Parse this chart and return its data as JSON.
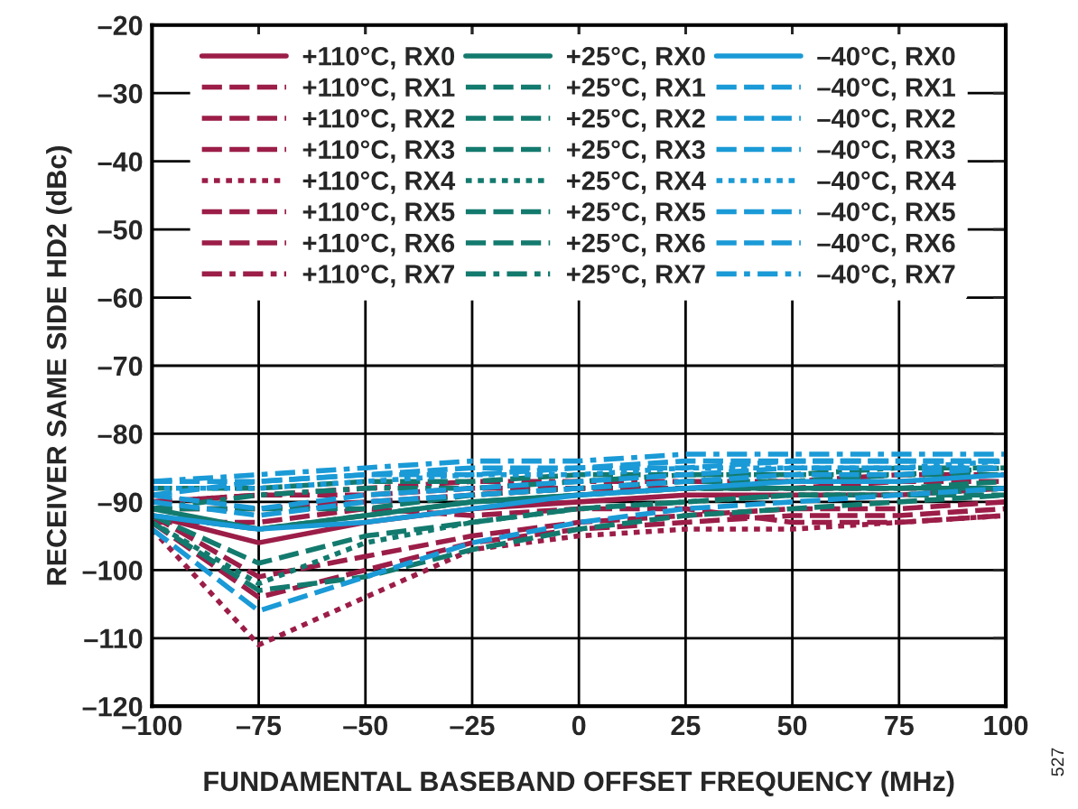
{
  "chart_data": {
    "type": "line",
    "xlabel": "FUNDAMENTAL BASEBAND OFFSET FREQUENCY (MHz)",
    "ylabel": "RECEIVER SAME SIDE HD2 (dBc)",
    "x": [
      -100,
      -75,
      -50,
      -25,
      0,
      25,
      50,
      75,
      100
    ],
    "xlim": [
      -100,
      100
    ],
    "xticks": [
      {
        "value": -100,
        "label": "–100"
      },
      {
        "value": -75,
        "label": "–75"
      },
      {
        "value": -50,
        "label": "–50"
      },
      {
        "value": -25,
        "label": "–25"
      },
      0,
      25,
      50,
      75,
      100
    ],
    "ylim": [
      -120,
      -20
    ],
    "yticks": [
      {
        "value": -120,
        "label": "–120"
      },
      {
        "value": -110,
        "label": "–110"
      },
      {
        "value": -100,
        "label": "–100"
      },
      {
        "value": -90,
        "label": "–90"
      },
      {
        "value": -80,
        "label": "–80"
      },
      {
        "value": -70,
        "label": "–70"
      },
      {
        "value": -60,
        "label": "–60"
      },
      {
        "value": -50,
        "label": "–50"
      },
      {
        "value": -40,
        "label": "–40"
      },
      {
        "value": -30,
        "label": "–30"
      },
      {
        "value": -20,
        "label": "–20"
      }
    ],
    "grid": true,
    "legend": "top",
    "marker": "none",
    "annotations": [
      "527"
    ],
    "series": [
      {
        "name": "+110°C, RX0",
        "color": "#9b1d48",
        "line_style": "solid",
        "values": [
          -92,
          -96,
          -93,
          -91,
          -90,
          -89,
          -89,
          -89,
          -88
        ]
      },
      {
        "name": "+110°C, RX1",
        "color": "#9b1d48",
        "line_style": "dashed",
        "values": [
          -93,
          -104,
          -100,
          -96,
          -94,
          -93,
          -92,
          -92,
          -91
        ]
      },
      {
        "name": "+110°C, RX2",
        "color": "#9b1d48",
        "line_style": "dashed",
        "values": [
          -92,
          -101,
          -98,
          -95,
          -93,
          -92,
          -91,
          -91,
          -90
        ]
      },
      {
        "name": "+110°C, RX3",
        "color": "#9b1d48",
        "line_style": "dashed",
        "values": [
          -91,
          -91,
          -90,
          -89,
          -88,
          -88,
          -88,
          -87,
          -87
        ]
      },
      {
        "name": "+110°C, RX4",
        "color": "#9b1d48",
        "line_style": "dotted",
        "values": [
          -94,
          -111,
          -104,
          -97,
          -95,
          -94,
          -94,
          -93,
          -92
        ]
      },
      {
        "name": "+110°C, RX5",
        "color": "#9b1d48",
        "line_style": "dashed",
        "values": [
          -93,
          -93,
          -91,
          -92,
          -91,
          -91,
          -93,
          -93,
          -92
        ]
      },
      {
        "name": "+110°C, RX6",
        "color": "#9b1d48",
        "line_style": "dashed",
        "values": [
          -90,
          -89,
          -89,
          -88,
          -88,
          -88,
          -88,
          -88,
          -88
        ]
      },
      {
        "name": "+110°C, RX7",
        "color": "#9b1d48",
        "line_style": "dashdot",
        "values": [
          -90,
          -89,
          -88,
          -87,
          -87,
          -87,
          -87,
          -86,
          -86
        ]
      },
      {
        "name": "+25°C, RX0",
        "color": "#137a6e",
        "line_style": "solid",
        "values": [
          -91,
          -94,
          -92,
          -90,
          -89,
          -88,
          -88,
          -88,
          -88
        ]
      },
      {
        "name": "+25°C, RX1",
        "color": "#137a6e",
        "line_style": "dashed",
        "values": [
          -93,
          -103,
          -101,
          -97,
          -94,
          -92,
          -91,
          -90,
          -89
        ]
      },
      {
        "name": "+25°C, RX2",
        "color": "#137a6e",
        "line_style": "dashed",
        "values": [
          -92,
          -99,
          -95,
          -93,
          -91,
          -90,
          -89,
          -89,
          -89
        ]
      },
      {
        "name": "+25°C, RX3",
        "color": "#137a6e",
        "line_style": "dashed",
        "values": [
          -91,
          -91,
          -91,
          -89,
          -88,
          -87,
          -87,
          -86,
          -86
        ]
      },
      {
        "name": "+25°C, RX4",
        "color": "#137a6e",
        "line_style": "dotted",
        "values": [
          -93,
          -102,
          -96,
          -93,
          -91,
          -90,
          -89,
          -89,
          -88
        ]
      },
      {
        "name": "+25°C, RX5",
        "color": "#137a6e",
        "line_style": "dashed",
        "values": [
          -92,
          -94,
          -92,
          -90,
          -89,
          -88,
          -88,
          -88,
          -87
        ]
      },
      {
        "name": "+25°C, RX6",
        "color": "#137a6e",
        "line_style": "dashed",
        "values": [
          -88,
          -88,
          -87,
          -87,
          -86,
          -86,
          -86,
          -86,
          -85
        ]
      },
      {
        "name": "+25°C, RX7",
        "color": "#137a6e",
        "line_style": "dashdot",
        "values": [
          -91,
          -89,
          -88,
          -88,
          -87,
          -86,
          -86,
          -85,
          -85
        ]
      },
      {
        "name": "–40°C, RX0",
        "color": "#1a9ad6",
        "line_style": "solid",
        "values": [
          -92,
          -94,
          -93,
          -91,
          -89,
          -88,
          -87,
          -87,
          -86
        ]
      },
      {
        "name": "–40°C, RX1",
        "color": "#1a9ad6",
        "line_style": "dashed",
        "values": [
          -94,
          -106,
          -101,
          -96,
          -93,
          -91,
          -90,
          -89,
          -88
        ]
      },
      {
        "name": "–40°C, RX2",
        "color": "#1a9ad6",
        "line_style": "dashed",
        "values": [
          -90,
          -92,
          -90,
          -89,
          -88,
          -87,
          -86,
          -86,
          -85
        ]
      },
      {
        "name": "–40°C, RX3",
        "color": "#1a9ad6",
        "line_style": "dashed",
        "values": [
          -89,
          -91,
          -89,
          -88,
          -87,
          -86,
          -85,
          -85,
          -85
        ]
      },
      {
        "name": "–40°C, RX4",
        "color": "#1a9ad6",
        "line_style": "dotted",
        "values": [
          -88,
          -88,
          -87,
          -86,
          -86,
          -85,
          -85,
          -85,
          -84
        ]
      },
      {
        "name": "–40°C, RX5",
        "color": "#1a9ad6",
        "line_style": "dashed",
        "values": [
          -87,
          -87,
          -86,
          -85,
          -85,
          -84,
          -84,
          -84,
          -84
        ]
      },
      {
        "name": "–40°C, RX6",
        "color": "#1a9ad6",
        "line_style": "dashed",
        "values": [
          -89,
          -87,
          -86,
          -86,
          -85,
          -85,
          -84,
          -84,
          -84
        ]
      },
      {
        "name": "–40°C, RX7",
        "color": "#1a9ad6",
        "line_style": "dashdot",
        "values": [
          -87,
          -86,
          -85,
          -84,
          -84,
          -83,
          -83,
          -83,
          -83
        ]
      }
    ]
  }
}
